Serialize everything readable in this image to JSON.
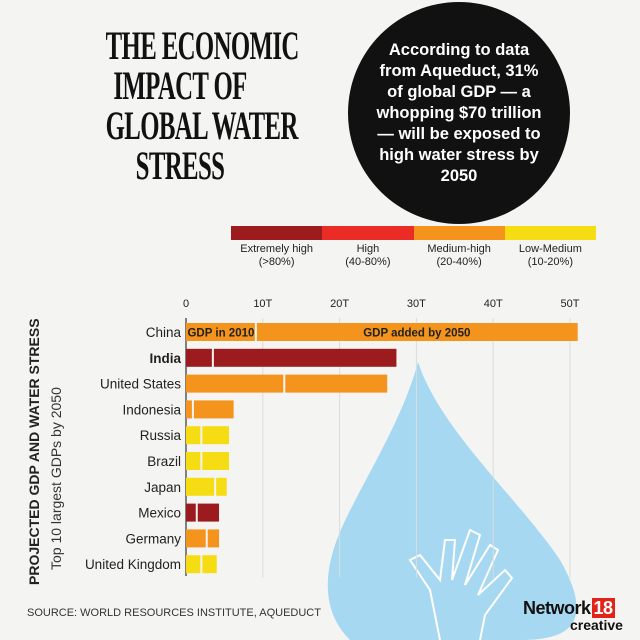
{
  "title": [
    "THE ECONOMIC",
    "IMPACT OF",
    "GLOBAL WATER",
    "STRESS"
  ],
  "callout": "According to data from Aqueduct, 31% of global GDP — a whopping $70 trillion — will be exposed to high water stress by 2050",
  "legend": [
    {
      "label": "Extremely high",
      "range": "(>80%)",
      "color": "#9b1b1f"
    },
    {
      "label": "High",
      "range": "(40-80%)",
      "color": "#ea2b26"
    },
    {
      "label": "Medium-high",
      "range": "(20-40%)",
      "color": "#f4941c"
    },
    {
      "label": "Low-Medium",
      "range": "(10-20%)",
      "color": "#f6dc12"
    }
  ],
  "side_title": "PROJECTED GDP AND WATER STRESS",
  "side_subtitle": "Top 10 largest GDPs by 2050",
  "source": "SOURCE: WORLD RESOURCES INSTITUTE, AQUEDUCT",
  "logo": {
    "text": "Network",
    "num": "18",
    "sub": "creative"
  },
  "chart_data": {
    "type": "bar",
    "orientation": "horizontal",
    "stacked": true,
    "xlim": [
      0,
      52
    ],
    "x_ticks": [
      "0",
      "10T",
      "20T",
      "30T",
      "40T",
      "50T"
    ],
    "x_tick_values": [
      0,
      10,
      20,
      30,
      40,
      50
    ],
    "grid": true,
    "segment_labels": {
      "gdp_2010": "GDP in 2010",
      "gdp_added": "GDP added by 2050"
    },
    "categories": [
      "China",
      "India",
      "United States",
      "Indonesia",
      "Russia",
      "Brazil",
      "Japan",
      "Mexico",
      "Germany",
      "United Kingdom"
    ],
    "highlight": "India",
    "stress": [
      "Medium-high",
      "Extremely high",
      "Medium-high",
      "Medium-high",
      "Low-Medium",
      "Low-Medium",
      "Low-Medium",
      "Extremely high",
      "Medium-high",
      "Low-Medium"
    ],
    "series": [
      {
        "name": "GDP in 2010",
        "values": [
          9.1,
          3.5,
          12.8,
          0.9,
          2.0,
          2.0,
          3.8,
          1.4,
          2.7,
          2.0
        ]
      },
      {
        "name": "GDP added by 2050",
        "values": [
          41.9,
          23.9,
          13.4,
          5.3,
          3.6,
          3.6,
          1.5,
          2.9,
          1.6,
          2.0
        ]
      }
    ],
    "unit": "trillion USD"
  }
}
